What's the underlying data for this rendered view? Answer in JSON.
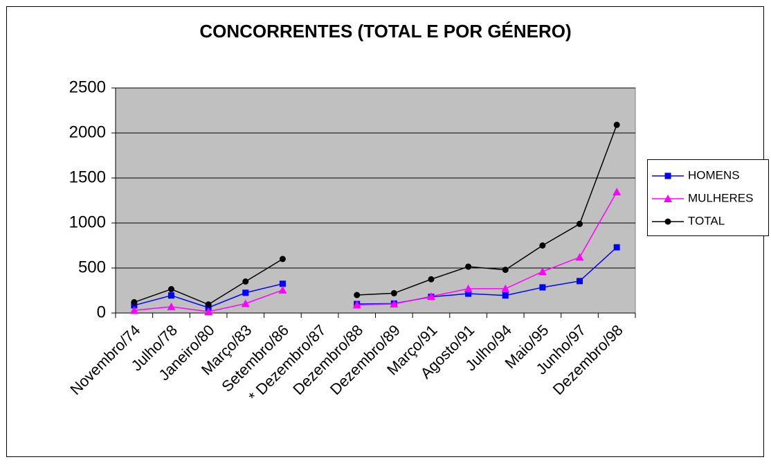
{
  "chart_data": {
    "type": "line",
    "title": "CONCORRENTES (TOTAL E POR GÉNERO)",
    "categories": [
      "Novembro/74",
      "Julho/78",
      "Janeiro/80",
      "Março/83",
      "Setembro/86",
      "* Dezembro/87",
      "Dezembro/88",
      "Dezembro/89",
      "Março/91",
      "Agosto/91",
      "Julho/94",
      "Maio/95",
      "Junho/97",
      "Dezembro/98"
    ],
    "series": [
      {
        "name": "HOMENS",
        "color": "#0000ff",
        "marker": "square",
        "values": [
          85,
          195,
          60,
          225,
          325,
          null,
          100,
          105,
          180,
          215,
          195,
          285,
          355,
          730
        ]
      },
      {
        "name": "MULHERES",
        "color": "#ff00ff",
        "marker": "triangle",
        "values": [
          30,
          70,
          15,
          105,
          255,
          null,
          90,
          100,
          185,
          270,
          270,
          460,
          620,
          1345
        ]
      },
      {
        "name": "TOTAL",
        "color": "#000000",
        "marker": "circle",
        "values": [
          120,
          265,
          95,
          350,
          600,
          null,
          200,
          220,
          375,
          515,
          480,
          750,
          990,
          2090
        ]
      }
    ],
    "ylim": [
      0,
      2500
    ],
    "yticks": [
      0,
      500,
      1000,
      1500,
      2000,
      2500
    ],
    "grid": true,
    "legend": "right"
  }
}
